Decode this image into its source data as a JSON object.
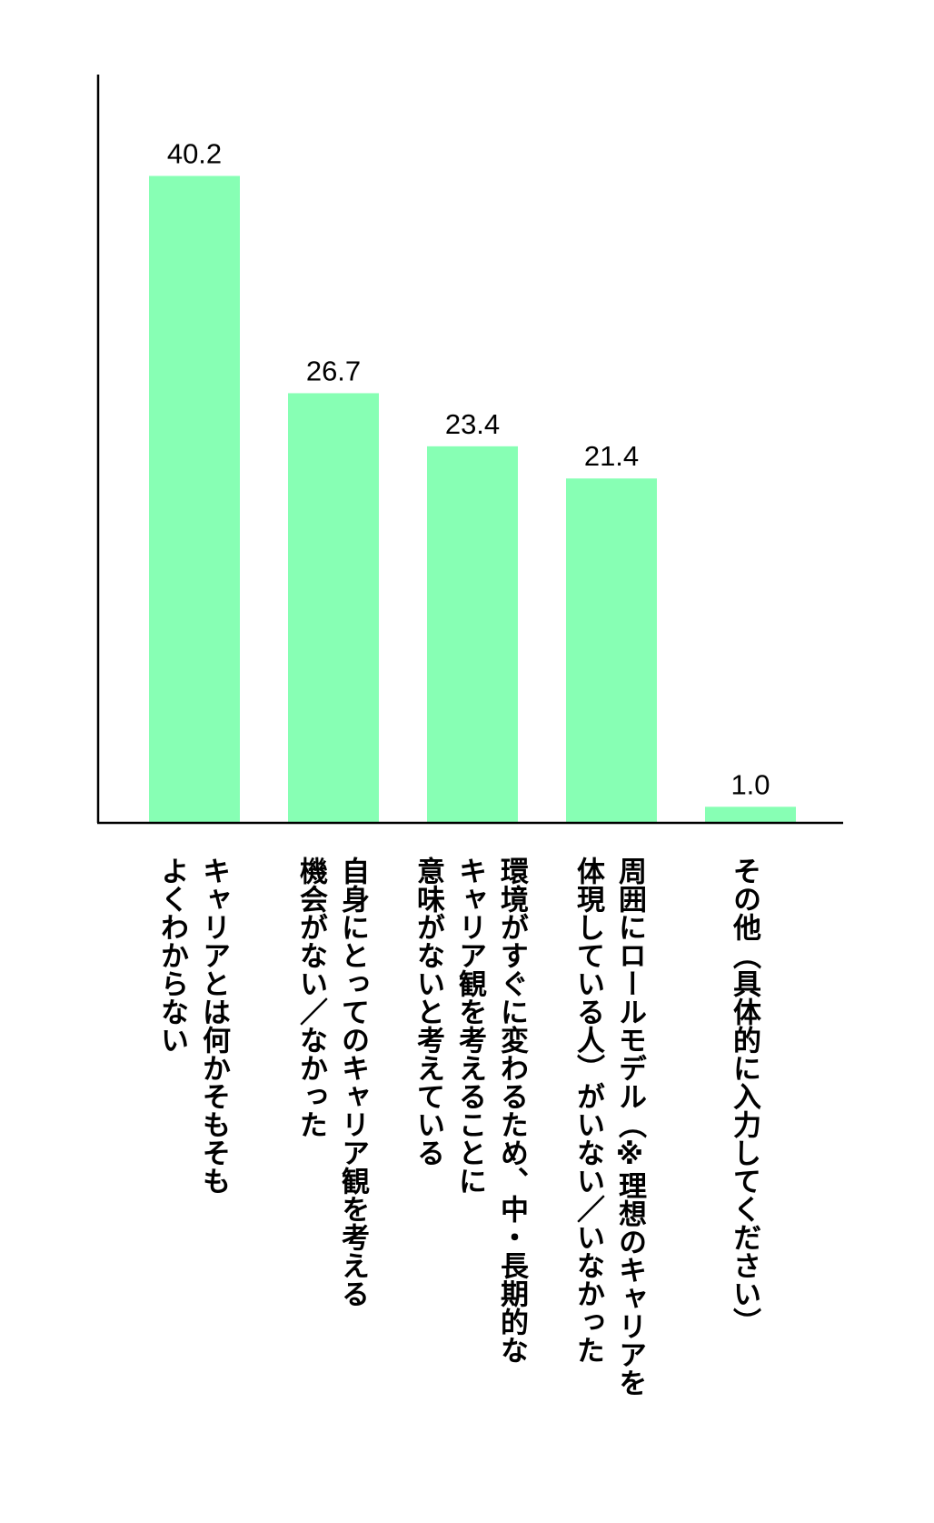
{
  "chart_data": {
    "type": "bar",
    "categories": [
      "キャリアとは何かそもそも\nよくわからない",
      "自身にとってのキャリア観を考える\n機会がない／なかった",
      "環境がすぐに変わるため、中・長期的な\nキャリア観を考えることに\n意味がないと考えている",
      "周囲にロールモデル（※理想のキャリアを\n体現している人）がいない／いなかった",
      "その他（具体的に入力してください）"
    ],
    "values": [
      40.2,
      26.7,
      23.4,
      21.4,
      1.0
    ],
    "value_labels": [
      "40.2",
      "26.7",
      "23.4",
      "21.4",
      "1.0"
    ],
    "ylim": [
      0,
      46.5
    ],
    "bar_color": "#87ffb4",
    "grid": false,
    "title": "",
    "xlabel": "",
    "ylabel": ""
  }
}
